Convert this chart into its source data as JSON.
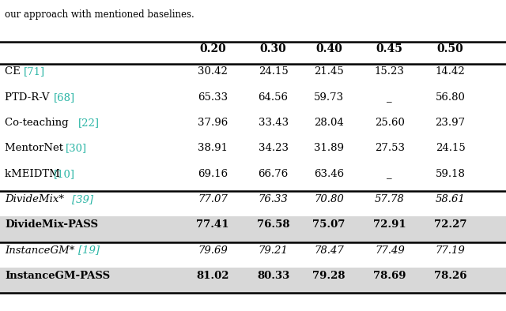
{
  "caption": "our approach with mentioned baselines.",
  "columns": [
    "",
    "0.20",
    "0.30",
    "0.40",
    "0.45",
    "0.50"
  ],
  "rows": [
    {
      "method": "CE [71]",
      "ref_color": "#2ab5a5",
      "ref_num": "71",
      "values": [
        "30.42",
        "24.15",
        "21.45",
        "15.23",
        "14.42"
      ],
      "bold": false,
      "italic": false,
      "highlight": false,
      "group": 1
    },
    {
      "method": "PTD-R-V [68]",
      "ref_color": "#2ab5a5",
      "ref_num": "68",
      "values": [
        "65.33",
        "64.56",
        "59.73",
        "_",
        "56.80"
      ],
      "bold": false,
      "italic": false,
      "highlight": false,
      "group": 1
    },
    {
      "method": "Co-teaching [22]",
      "ref_color": "#2ab5a5",
      "ref_num": "22",
      "values": [
        "37.96",
        "33.43",
        "28.04",
        "25.60",
        "23.97"
      ],
      "bold": false,
      "italic": false,
      "highlight": false,
      "group": 1
    },
    {
      "method": "MentorNet [30]",
      "ref_color": "#2ab5a5",
      "ref_num": "30",
      "values": [
        "38.91",
        "34.23",
        "31.89",
        "27.53",
        "24.15"
      ],
      "bold": false,
      "italic": false,
      "highlight": false,
      "group": 1
    },
    {
      "method": "kMEIDTM [10]",
      "ref_color": "#2ab5a5",
      "ref_num": "10",
      "values": [
        "69.16",
        "66.76",
        "63.46",
        "_",
        "59.18"
      ],
      "bold": false,
      "italic": false,
      "highlight": false,
      "group": 1
    },
    {
      "method": "DivideMix* [39]",
      "ref_color": "#2ab5a5",
      "ref_num": "39",
      "values": [
        "77.07",
        "76.33",
        "70.80",
        "57.78",
        "58.61"
      ],
      "bold": false,
      "italic": true,
      "highlight": false,
      "group": 2
    },
    {
      "method": "DivideMix-PASS",
      "ref_color": null,
      "ref_num": null,
      "values": [
        "77.41",
        "76.58",
        "75.07",
        "72.91",
        "72.27"
      ],
      "bold": true,
      "italic": false,
      "highlight": true,
      "group": 2
    },
    {
      "method": "InstanceGM* [19]",
      "ref_color": "#2ab5a5",
      "ref_num": "19",
      "values": [
        "79.69",
        "79.21",
        "78.47",
        "77.49",
        "77.19"
      ],
      "bold": false,
      "italic": true,
      "highlight": false,
      "group": 3
    },
    {
      "method": "InstanceGM-PASS",
      "ref_color": null,
      "ref_num": null,
      "values": [
        "81.02",
        "80.33",
        "79.28",
        "78.69",
        "78.26"
      ],
      "bold": true,
      "italic": false,
      "highlight": true,
      "group": 3
    }
  ],
  "header_bold": true,
  "teal_color": "#2ab5a5",
  "highlight_color": "#d8d8d8",
  "background_color": "#ffffff",
  "thick_line_color": "#000000",
  "thin_line_color": "#000000"
}
